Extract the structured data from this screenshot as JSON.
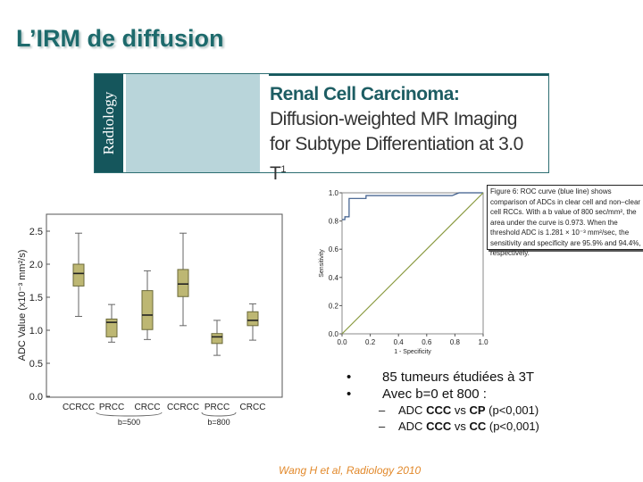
{
  "slide": {
    "title": "L’IRM de diffusion",
    "citation": "Wang H et al, Radiology 2010"
  },
  "banner": {
    "journal": "Radiology",
    "title_bold": "Renal Cell Carcinoma:",
    "title_rest": " Diffusion-weighted MR Imaging for Subtype Differentiation at 3.0 T",
    "superscript": "1"
  },
  "figure_caption": "Figure 6:   ROC curve (blue line) shows comparison of ADCs in clear cell and non–clear cell RCCs. With a b value of 800 sec/mm², the area under the curve is 0.973. When the threshold ADC is 1.281 × 10⁻³ mm²/sec, the sensitivity and specificity are 95.9% and 94.4%, respectively.",
  "bullets": [
    {
      "marker": "•",
      "text": "85 tumeurs étudiées à 3T"
    },
    {
      "marker": "•",
      "text": "Avec b=0 et 800 :"
    }
  ],
  "sub_bullets": [
    {
      "marker": "–",
      "pre": "ADC ",
      "b1": "CCC",
      "mid": " vs ",
      "b2": "CP",
      "post": " (p<0,001)"
    },
    {
      "marker": "–",
      "pre": "ADC ",
      "b1": "CCC",
      "mid": " vs ",
      "b2": "CC",
      "post": " (p<0,001)"
    }
  ],
  "colors": {
    "title": "#1d6a6c",
    "box": "#bdb773",
    "roc": "#3a5a8a",
    "diag": "#8a9a40",
    "citation": "#e2892b"
  },
  "chart_data": [
    {
      "type": "box",
      "ylabel": "ADC Value (x10⁻³ mm²/s)",
      "ylim": [
        0,
        2.75
      ],
      "yticks": [
        "0.0",
        "0.5",
        "1.0",
        "1.5",
        "2.0",
        "2.5"
      ],
      "categories": [
        "CCRCC",
        "PRCC",
        "CRCC",
        "CCRCC",
        "PRCC",
        "CRCC"
      ],
      "groups": [
        "b=500",
        "b=800"
      ],
      "boxes": [
        {
          "min": 1.21,
          "q1": 1.67,
          "median": 1.86,
          "q3": 2.0,
          "max": 2.47
        },
        {
          "min": 0.82,
          "q1": 0.9,
          "median": 1.12,
          "q3": 1.17,
          "max": 1.39
        },
        {
          "min": 0.86,
          "q1": 1.01,
          "median": 1.23,
          "q3": 1.6,
          "max": 1.9
        },
        {
          "min": 1.07,
          "q1": 1.51,
          "median": 1.7,
          "q3": 1.92,
          "max": 2.47
        },
        {
          "min": 0.62,
          "q1": 0.8,
          "median": 0.9,
          "q3": 0.95,
          "max": 1.15
        },
        {
          "min": 0.85,
          "q1": 1.07,
          "median": 1.15,
          "q3": 1.28,
          "max": 1.4
        }
      ]
    },
    {
      "type": "line",
      "xlabel": "1 - Specificity",
      "ylabel": "Sensitivity",
      "xlim": [
        0,
        1
      ],
      "ylim": [
        0,
        1
      ],
      "xticks": [
        "0.0",
        "0.2",
        "0.4",
        "0.6",
        "0.8",
        "1.0"
      ],
      "yticks": [
        "0.0",
        "0.2",
        "0.4",
        "0.6",
        "0.8",
        "1.0"
      ],
      "series": [
        {
          "name": "ROC",
          "x": [
            0,
            0.02,
            0.02,
            0.05,
            0.05,
            0.17,
            0.17,
            0.78,
            0.83,
            1
          ],
          "y": [
            0.81,
            0.81,
            0.83,
            0.83,
            0.96,
            0.96,
            0.98,
            0.98,
            1,
            1
          ]
        },
        {
          "name": "reference",
          "x": [
            0,
            1
          ],
          "y": [
            0,
            1
          ]
        }
      ]
    }
  ]
}
